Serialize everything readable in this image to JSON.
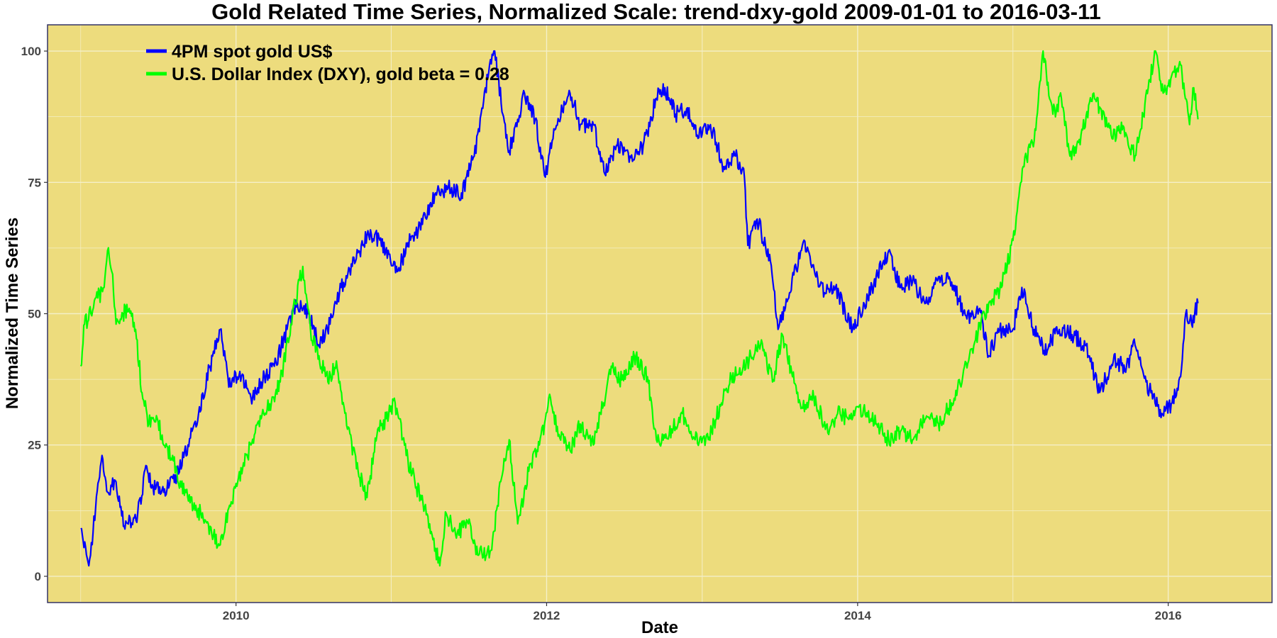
{
  "chart_data": {
    "type": "line",
    "title": "Gold Related Time Series, Normalized Scale: trend-dxy-gold 2009-01-01 to 2016-03-11",
    "xlabel": "Date",
    "ylabel": "Normalized Time Series",
    "xlim": [
      "2008-10-15",
      "2016-09-01"
    ],
    "ylim": [
      -5,
      105
    ],
    "x_ticks": [
      {
        "label": "2010",
        "date": "2010-01-01"
      },
      {
        "label": "2012",
        "date": "2012-01-01"
      },
      {
        "label": "2014",
        "date": "2014-01-01"
      },
      {
        "label": "2016",
        "date": "2016-01-01"
      }
    ],
    "y_ticks": [
      0,
      25,
      50,
      75,
      100
    ],
    "grid": true,
    "legend_position": "top-left",
    "colors": {
      "panel_background": "#EDDC7D",
      "grid": "#F4EFC8",
      "axis_border": "#333366"
    },
    "series": [
      {
        "name": "4PM spot gold US$",
        "color": "#0000FF",
        "points": [
          [
            "2009-01-01",
            9
          ],
          [
            "2009-01-20",
            2
          ],
          [
            "2009-02-05",
            13
          ],
          [
            "2009-02-20",
            23
          ],
          [
            "2009-03-05",
            16
          ],
          [
            "2009-03-25",
            18
          ],
          [
            "2009-04-15",
            9
          ],
          [
            "2009-05-15",
            12
          ],
          [
            "2009-06-05",
            21
          ],
          [
            "2009-06-20",
            17
          ],
          [
            "2009-07-15",
            16
          ],
          [
            "2009-08-15",
            19
          ],
          [
            "2009-09-10",
            25
          ],
          [
            "2009-10-05",
            31
          ],
          [
            "2009-11-01",
            40
          ],
          [
            "2009-11-25",
            47
          ],
          [
            "2009-12-15",
            36
          ],
          [
            "2010-01-10",
            39
          ],
          [
            "2010-02-05",
            34
          ],
          [
            "2010-03-01",
            37
          ],
          [
            "2010-04-01",
            40
          ],
          [
            "2010-05-01",
            47
          ],
          [
            "2010-05-25",
            52
          ],
          [
            "2010-06-20",
            50
          ],
          [
            "2010-07-15",
            44
          ],
          [
            "2010-08-10",
            48
          ],
          [
            "2010-09-05",
            55
          ],
          [
            "2010-10-01",
            59
          ],
          [
            "2010-11-05",
            65
          ],
          [
            "2010-12-05",
            64
          ],
          [
            "2011-01-15",
            58
          ],
          [
            "2011-02-15",
            64
          ],
          [
            "2011-03-15",
            67
          ],
          [
            "2011-04-15",
            73
          ],
          [
            "2011-05-15",
            74
          ],
          [
            "2011-06-15",
            73
          ],
          [
            "2011-07-15",
            80
          ],
          [
            "2011-08-10",
            93
          ],
          [
            "2011-09-01",
            100
          ],
          [
            "2011-09-20",
            88
          ],
          [
            "2011-10-05",
            81
          ],
          [
            "2011-10-25",
            87
          ],
          [
            "2011-11-10",
            92
          ],
          [
            "2011-12-05",
            87
          ],
          [
            "2011-12-29",
            76
          ],
          [
            "2012-01-20",
            85
          ],
          [
            "2012-02-25",
            92
          ],
          [
            "2012-03-20",
            86
          ],
          [
            "2012-04-20",
            86
          ],
          [
            "2012-05-15",
            77
          ],
          [
            "2012-06-15",
            82
          ],
          [
            "2012-07-15",
            80
          ],
          [
            "2012-08-15",
            82
          ],
          [
            "2012-09-15",
            91
          ],
          [
            "2012-10-05",
            93
          ],
          [
            "2012-10-30",
            88
          ],
          [
            "2012-11-25",
            89
          ],
          [
            "2012-12-20",
            84
          ],
          [
            "2013-01-20",
            86
          ],
          [
            "2013-02-20",
            78
          ],
          [
            "2013-03-20",
            80
          ],
          [
            "2013-04-10",
            76
          ],
          [
            "2013-04-18",
            63
          ],
          [
            "2013-05-10",
            68
          ],
          [
            "2013-06-10",
            60
          ],
          [
            "2013-06-28",
            47
          ],
          [
            "2013-07-25",
            54
          ],
          [
            "2013-08-28",
            64
          ],
          [
            "2013-09-25",
            57
          ],
          [
            "2013-10-15",
            54
          ],
          [
            "2013-11-10",
            55
          ],
          [
            "2013-12-20",
            47
          ],
          [
            "2014-01-25",
            53
          ],
          [
            "2014-03-15",
            62
          ],
          [
            "2014-04-10",
            55
          ],
          [
            "2014-05-10",
            56
          ],
          [
            "2014-06-10",
            52
          ],
          [
            "2014-07-10",
            57
          ],
          [
            "2014-08-10",
            56
          ],
          [
            "2014-09-15",
            49
          ],
          [
            "2014-10-15",
            51
          ],
          [
            "2014-11-05",
            42
          ],
          [
            "2014-12-01",
            47
          ],
          [
            "2015-01-01",
            47
          ],
          [
            "2015-01-22",
            55
          ],
          [
            "2015-02-20",
            47
          ],
          [
            "2015-03-15",
            43
          ],
          [
            "2015-04-20",
            47
          ],
          [
            "2015-05-20",
            46
          ],
          [
            "2015-06-20",
            44
          ],
          [
            "2015-07-24",
            35
          ],
          [
            "2015-08-25",
            41
          ],
          [
            "2015-09-25",
            40
          ],
          [
            "2015-10-15",
            44
          ],
          [
            "2015-11-10",
            37
          ],
          [
            "2015-12-01",
            33
          ],
          [
            "2015-12-17",
            31
          ],
          [
            "2016-01-10",
            33
          ],
          [
            "2016-01-30",
            38
          ],
          [
            "2016-02-11",
            50
          ],
          [
            "2016-02-25",
            48
          ],
          [
            "2016-03-11",
            52
          ]
        ]
      },
      {
        "name": "U.S. Dollar Index (DXY), gold beta = 0.28",
        "color": "#00FF00",
        "points": [
          [
            "2009-01-01",
            40
          ],
          [
            "2009-01-10",
            48
          ],
          [
            "2009-01-25",
            50
          ],
          [
            "2009-02-10",
            53
          ],
          [
            "2009-02-25",
            55
          ],
          [
            "2009-03-05",
            62
          ],
          [
            "2009-03-15",
            58
          ],
          [
            "2009-03-25",
            48
          ],
          [
            "2009-04-10",
            50
          ],
          [
            "2009-04-25",
            51
          ],
          [
            "2009-05-10",
            47
          ],
          [
            "2009-05-25",
            35
          ],
          [
            "2009-06-10",
            29
          ],
          [
            "2009-06-30",
            30
          ],
          [
            "2009-07-15",
            25
          ],
          [
            "2009-08-05",
            23
          ],
          [
            "2009-08-25",
            17
          ],
          [
            "2009-09-15",
            14
          ],
          [
            "2009-10-10",
            12
          ],
          [
            "2009-11-05",
            8
          ],
          [
            "2009-11-25",
            6
          ],
          [
            "2009-12-15",
            13
          ],
          [
            "2010-01-05",
            18
          ],
          [
            "2010-02-05",
            25
          ],
          [
            "2010-03-01",
            30
          ],
          [
            "2010-03-25",
            33
          ],
          [
            "2010-04-15",
            37
          ],
          [
            "2010-05-10",
            48
          ],
          [
            "2010-06-07",
            59
          ],
          [
            "2010-06-25",
            47
          ],
          [
            "2010-07-15",
            42
          ],
          [
            "2010-08-05",
            37
          ],
          [
            "2010-08-25",
            41
          ],
          [
            "2010-09-20",
            28
          ],
          [
            "2010-10-15",
            20
          ],
          [
            "2010-11-05",
            15
          ],
          [
            "2010-11-30",
            28
          ],
          [
            "2010-12-20",
            30
          ],
          [
            "2011-01-10",
            33
          ],
          [
            "2011-02-05",
            23
          ],
          [
            "2011-03-01",
            17
          ],
          [
            "2011-04-01",
            10
          ],
          [
            "2011-04-25",
            2
          ],
          [
            "2011-05-10",
            12
          ],
          [
            "2011-06-01",
            8
          ],
          [
            "2011-07-01",
            10
          ],
          [
            "2011-07-25",
            4
          ],
          [
            "2011-08-25",
            5
          ],
          [
            "2011-09-15",
            18
          ],
          [
            "2011-10-05",
            26
          ],
          [
            "2011-10-25",
            10
          ],
          [
            "2011-11-20",
            20
          ],
          [
            "2011-12-15",
            25
          ],
          [
            "2012-01-10",
            34
          ],
          [
            "2012-01-30",
            27
          ],
          [
            "2012-02-25",
            24
          ],
          [
            "2012-03-20",
            29
          ],
          [
            "2012-04-20",
            25
          ],
          [
            "2012-05-20",
            35
          ],
          [
            "2012-06-01",
            40
          ],
          [
            "2012-06-20",
            37
          ],
          [
            "2012-07-25",
            42
          ],
          [
            "2012-08-25",
            38
          ],
          [
            "2012-09-15",
            26
          ],
          [
            "2012-10-15",
            27
          ],
          [
            "2012-11-15",
            31
          ],
          [
            "2012-12-15",
            26
          ],
          [
            "2013-01-15",
            26
          ],
          [
            "2013-02-15",
            33
          ],
          [
            "2013-03-10",
            38
          ],
          [
            "2013-04-05",
            39
          ],
          [
            "2013-04-25",
            42
          ],
          [
            "2013-05-20",
            45
          ],
          [
            "2013-06-15",
            37
          ],
          [
            "2013-07-08",
            46
          ],
          [
            "2013-08-01",
            38
          ],
          [
            "2013-08-25",
            32
          ],
          [
            "2013-09-20",
            34
          ],
          [
            "2013-10-25",
            27
          ],
          [
            "2013-11-15",
            31
          ],
          [
            "2013-12-15",
            30
          ],
          [
            "2014-01-15",
            32
          ],
          [
            "2014-02-15",
            29
          ],
          [
            "2014-03-15",
            26
          ],
          [
            "2014-04-15",
            28
          ],
          [
            "2014-05-10",
            26
          ],
          [
            "2014-06-10",
            30
          ],
          [
            "2014-07-10",
            29
          ],
          [
            "2014-08-10",
            33
          ],
          [
            "2014-09-05",
            38
          ],
          [
            "2014-10-05",
            45
          ],
          [
            "2014-11-05",
            52
          ],
          [
            "2014-12-05",
            55
          ],
          [
            "2015-01-05",
            65
          ],
          [
            "2015-01-25",
            78
          ],
          [
            "2015-02-20",
            83
          ],
          [
            "2015-03-13",
            100
          ],
          [
            "2015-04-05",
            88
          ],
          [
            "2015-04-25",
            91
          ],
          [
            "2015-05-15",
            80
          ],
          [
            "2015-06-10",
            84
          ],
          [
            "2015-07-10",
            92
          ],
          [
            "2015-08-20",
            84
          ],
          [
            "2015-09-15",
            85
          ],
          [
            "2015-10-15",
            80
          ],
          [
            "2015-11-15",
            93
          ],
          [
            "2015-12-02",
            100
          ],
          [
            "2015-12-20",
            92
          ],
          [
            "2016-01-15",
            96
          ],
          [
            "2016-01-28",
            98
          ],
          [
            "2016-02-20",
            86
          ],
          [
            "2016-03-01",
            93
          ],
          [
            "2016-03-11",
            87
          ]
        ]
      }
    ]
  }
}
